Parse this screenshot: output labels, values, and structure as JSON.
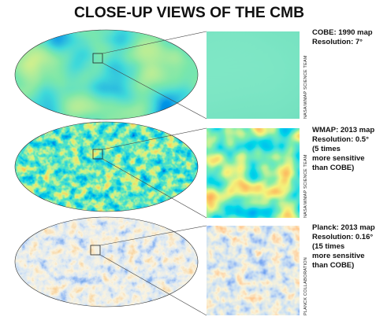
{
  "title": "CLOSE-UP VIEWS OF THE CMB",
  "panels": [
    {
      "caption": [
        "COBE: 1990 map",
        "Resolution: 7°"
      ],
      "credit": "NASA/WMAP SCIENCE TEAM"
    },
    {
      "caption": [
        "WMAP: 2013 map",
        "Resolution: 0.5°",
        "(5 times",
        "more sensitive",
        "than COBE)"
      ],
      "credit": "NASA/WMAP SCIENCE TEAM"
    },
    {
      "caption": [
        "Planck: 2013 map",
        "Resolution: 0.16°",
        "(15 times",
        "more sensitive",
        "than COBE)"
      ],
      "credit": "PLANCK COLLABORATION"
    }
  ]
}
